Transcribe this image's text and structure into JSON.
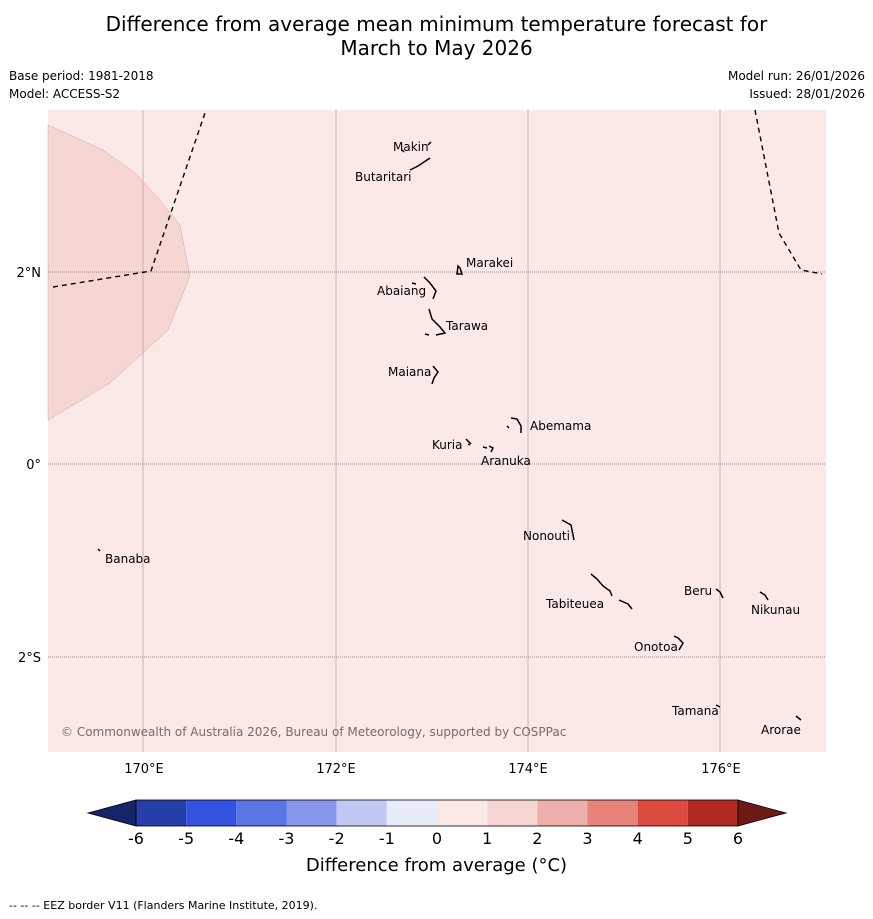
{
  "header": {
    "title_line1": "Difference from average mean minimum temperature forecast for",
    "title_line2": "March to May 2026",
    "base_period": "Base period: 1981-2018",
    "model": "Model: ACCESS-S2",
    "model_run": "Model run: 26/01/2026",
    "issued": "Issued: 28/01/2026"
  },
  "map": {
    "background_color": "#fbe9e8",
    "anomaly_patch_color": "#f6d6d3",
    "latitude_labels": [
      "2°N",
      "0°",
      "2°S"
    ],
    "longitude_labels": [
      "170°E",
      "172°E",
      "174°E",
      "176°E"
    ],
    "places": [
      "Makin",
      "Butaritari",
      "Marakei",
      "Abaiang",
      "Tarawa",
      "Maiana",
      "Abemama",
      "Kuria",
      "Aranuka",
      "Nonouti",
      "Banaba",
      "Beru",
      "Nikunau",
      "Tabiteuea",
      "Onotoa",
      "Tamana",
      "Arorae"
    ],
    "copyright": "© Commonwealth of Australia 2026, Bureau of Meteorology, supported by COSPPac"
  },
  "colorbar": {
    "ticks": [
      "-6",
      "-5",
      "-4",
      "-3",
      "-2",
      "-1",
      "0",
      "1",
      "2",
      "3",
      "4",
      "5",
      "6"
    ],
    "colors": [
      "#253ea8",
      "#3352e0",
      "#5a74e4",
      "#8797ec",
      "#c1c8f3",
      "#e9ecfa",
      "#fbe9e8",
      "#f6d6d3",
      "#eeaea9",
      "#e8837c",
      "#dc4a40",
      "#b02a22"
    ],
    "low_extension_color": "#162569",
    "high_extension_color": "#6e1a14",
    "label": "Difference from average (°C)"
  },
  "footnote": "-- -- -- EEZ border V11 (Flanders Marine Institute, 2019)."
}
